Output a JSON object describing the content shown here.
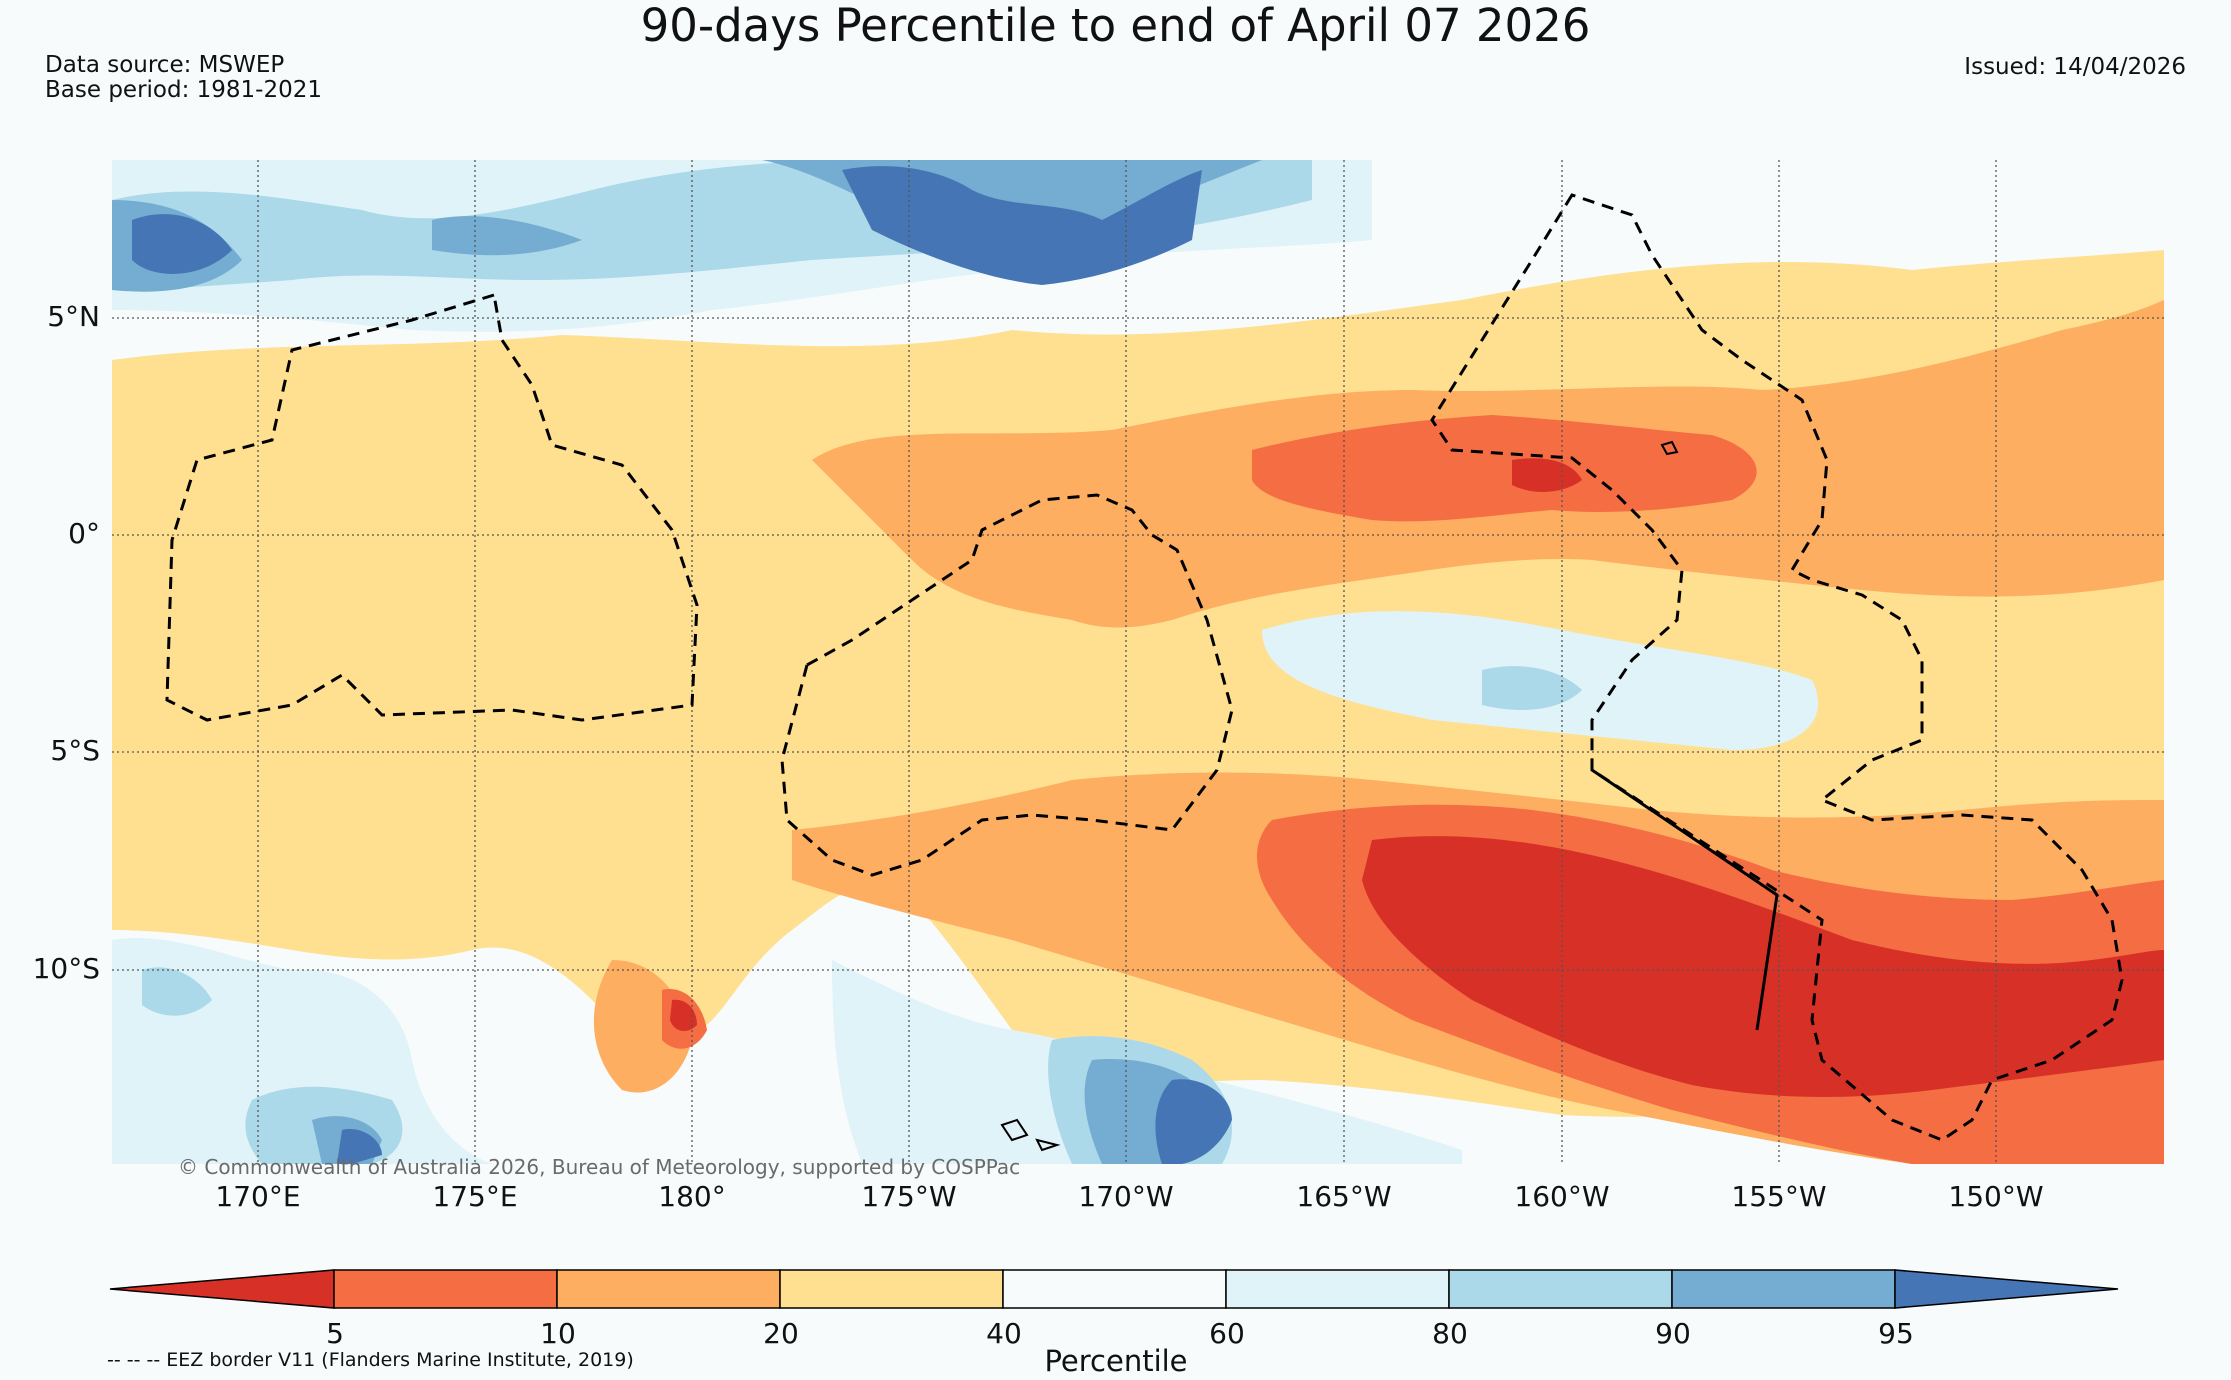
{
  "title": "90-days Percentile to end of April 07 2026",
  "data_source": "Data source: MSWEP",
  "base_period": "Base period: 1981-2021",
  "issued": "Issued: 14/04/2026",
  "copyright": "© Commonwealth of Australia 2026, Bureau of Meteorology, supported by COSPPac",
  "eez_legend": "-- -- -- EEZ border V11 (Flanders Marine Institute, 2019)",
  "lat_labels": [
    "5°N",
    "0°",
    "5°S",
    "10°S"
  ],
  "lon_labels": [
    "170°E",
    "175°E",
    "180°",
    "175°W",
    "170°W",
    "165°W",
    "160°W",
    "155°W",
    "150°W"
  ],
  "colorbar": {
    "label": "Percentile",
    "ticks": [
      "5",
      "10",
      "20",
      "40",
      "60",
      "80",
      "90",
      "95"
    ],
    "colors": [
      "#d73027",
      "#f46d43",
      "#fdae61",
      "#fee090",
      "#f7fbfc",
      "#e0f3f8",
      "#abd9e9",
      "#74add1",
      "#4575b4"
    ]
  }
}
